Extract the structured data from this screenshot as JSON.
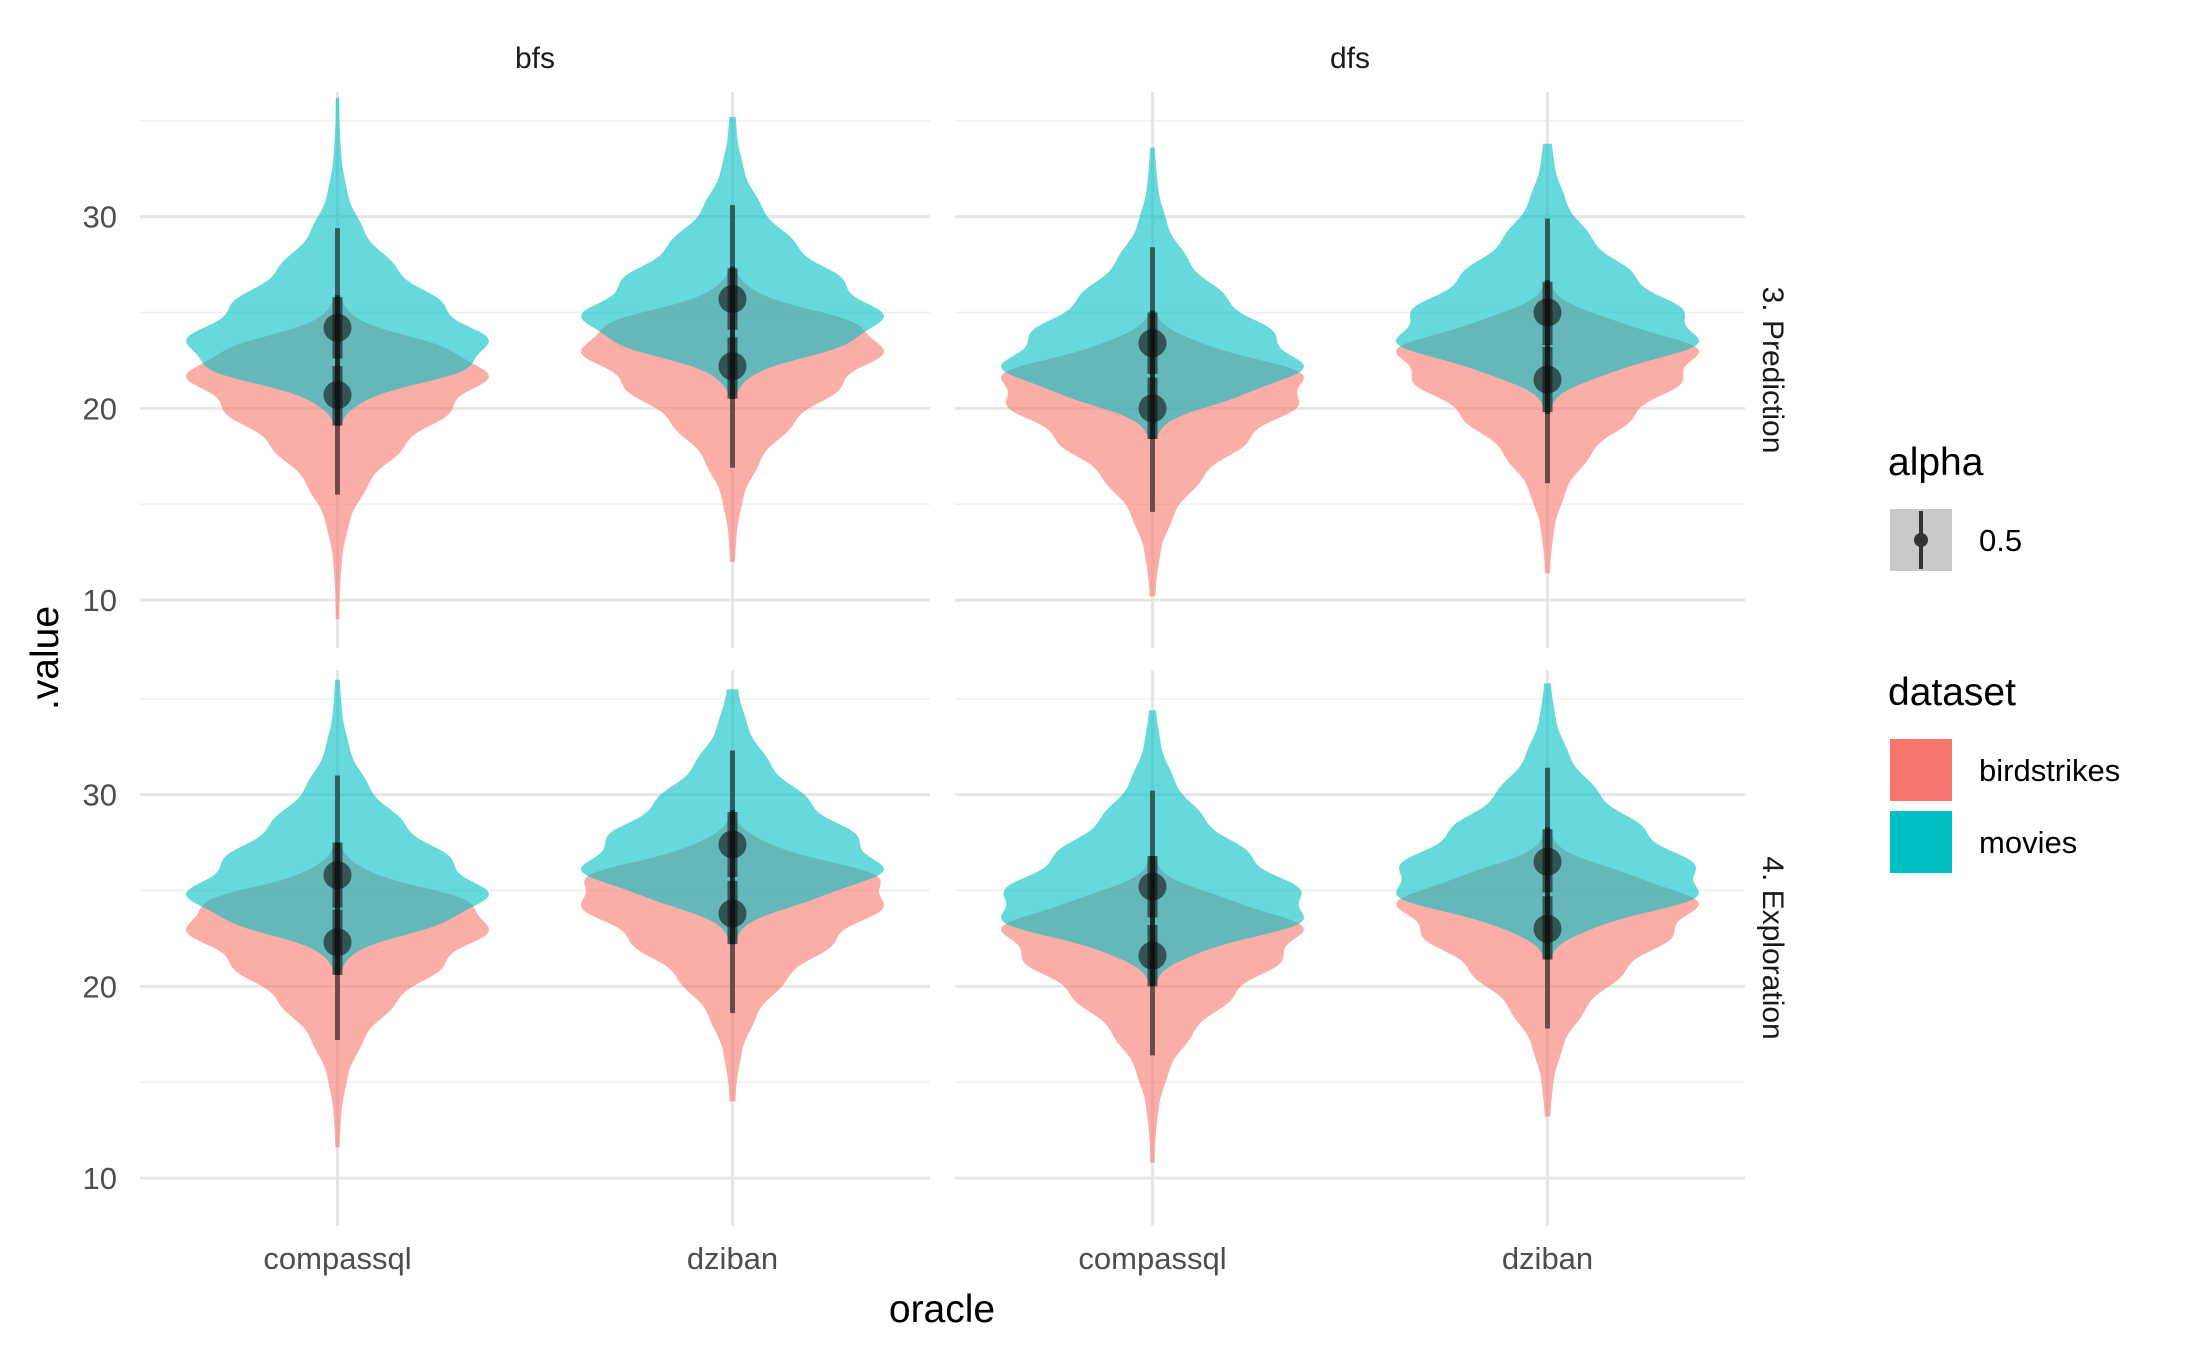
{
  "chart_data": {
    "type": "violin",
    "xlabel": "oracle",
    "ylabel": ".value",
    "ylim": [
      7.5,
      36.5
    ],
    "yticks": [
      10,
      20,
      30
    ],
    "categories": [
      "compassql",
      "dziban"
    ],
    "facet_cols": [
      "bfs",
      "dfs"
    ],
    "facet_rows": [
      "3. Prediction",
      "4. Exploration"
    ],
    "grid": true,
    "legend_position": "right",
    "legends": {
      "alpha": {
        "title": "alpha",
        "entries": [
          {
            "label": "0.5"
          }
        ]
      },
      "dataset": {
        "title": "dataset",
        "entries": [
          {
            "label": "birdstrikes",
            "color": "#F8766D"
          },
          {
            "label": "movies",
            "color": "#00BFC4"
          }
        ]
      }
    },
    "colors": {
      "birdstrikes": "#F8766D",
      "movies": "#00BFC4",
      "summary": "#111111"
    },
    "series": [
      {
        "name": "birdstrikes",
        "row": "3. Prediction",
        "col": "bfs",
        "oracle": "compassql",
        "median": 20.7,
        "q66": [
          19.1,
          22.2
        ],
        "q95": [
          15.5,
          25.9
        ],
        "range": [
          9.0,
          25.9
        ]
      },
      {
        "name": "movies",
        "row": "3. Prediction",
        "col": "bfs",
        "oracle": "compassql",
        "median": 24.2,
        "q66": [
          22.6,
          25.8
        ],
        "q95": [
          19.1,
          29.4
        ],
        "range": [
          19.1,
          36.2
        ]
      },
      {
        "name": "birdstrikes",
        "row": "3. Prediction",
        "col": "bfs",
        "oracle": "dziban",
        "median": 22.2,
        "q66": [
          20.5,
          23.7
        ],
        "q95": [
          16.9,
          27.4
        ],
        "range": [
          12.0,
          27.4
        ]
      },
      {
        "name": "movies",
        "row": "3. Prediction",
        "col": "bfs",
        "oracle": "dziban",
        "median": 25.7,
        "q66": [
          24.1,
          27.3
        ],
        "q95": [
          20.5,
          30.6
        ],
        "range": [
          20.5,
          35.2
        ]
      },
      {
        "name": "birdstrikes",
        "row": "3. Prediction",
        "col": "dfs",
        "oracle": "compassql",
        "median": 20.0,
        "q66": [
          18.4,
          21.6
        ],
        "q95": [
          14.6,
          25.1
        ],
        "range": [
          10.2,
          25.1
        ]
      },
      {
        "name": "movies",
        "row": "3. Prediction",
        "col": "dfs",
        "oracle": "compassql",
        "median": 23.4,
        "q66": [
          21.8,
          25.0
        ],
        "q95": [
          18.4,
          28.4
        ],
        "range": [
          18.4,
          33.6
        ]
      },
      {
        "name": "birdstrikes",
        "row": "3. Prediction",
        "col": "dfs",
        "oracle": "dziban",
        "median": 21.5,
        "q66": [
          19.8,
          23.2
        ],
        "q95": [
          16.1,
          26.7
        ],
        "range": [
          11.4,
          26.7
        ]
      },
      {
        "name": "movies",
        "row": "3. Prediction",
        "col": "dfs",
        "oracle": "dziban",
        "median": 25.0,
        "q66": [
          23.3,
          26.6
        ],
        "q95": [
          19.7,
          29.9
        ],
        "range": [
          19.7,
          33.8
        ]
      },
      {
        "name": "birdstrikes",
        "row": "4. Exploration",
        "col": "bfs",
        "oracle": "compassql",
        "median": 22.3,
        "q66": [
          20.6,
          24.0
        ],
        "q95": [
          17.2,
          27.5
        ],
        "range": [
          11.6,
          27.5
        ]
      },
      {
        "name": "movies",
        "row": "4. Exploration",
        "col": "bfs",
        "oracle": "compassql",
        "median": 25.8,
        "q66": [
          24.1,
          27.5
        ],
        "q95": [
          20.6,
          31.0
        ],
        "range": [
          20.6,
          36.0
        ]
      },
      {
        "name": "birdstrikes",
        "row": "4. Exploration",
        "col": "bfs",
        "oracle": "dziban",
        "median": 23.8,
        "q66": [
          22.2,
          25.5
        ],
        "q95": [
          18.6,
          29.2
        ],
        "range": [
          14.0,
          29.2
        ]
      },
      {
        "name": "movies",
        "row": "4. Exploration",
        "col": "bfs",
        "oracle": "dziban",
        "median": 27.4,
        "q66": [
          25.7,
          29.1
        ],
        "q95": [
          22.2,
          32.3
        ],
        "range": [
          22.2,
          35.5
        ]
      },
      {
        "name": "birdstrikes",
        "row": "4. Exploration",
        "col": "dfs",
        "oracle": "compassql",
        "median": 21.6,
        "q66": [
          20.0,
          23.2
        ],
        "q95": [
          16.4,
          26.8
        ],
        "range": [
          10.8,
          26.8
        ]
      },
      {
        "name": "movies",
        "row": "4. Exploration",
        "col": "dfs",
        "oracle": "compassql",
        "median": 25.2,
        "q66": [
          23.6,
          26.8
        ],
        "q95": [
          20.0,
          30.2
        ],
        "range": [
          20.0,
          34.4
        ]
      },
      {
        "name": "birdstrikes",
        "row": "4. Exploration",
        "col": "dfs",
        "oracle": "dziban",
        "median": 23.0,
        "q66": [
          21.4,
          24.7
        ],
        "q95": [
          17.8,
          28.3
        ],
        "range": [
          13.2,
          28.3
        ]
      },
      {
        "name": "movies",
        "row": "4. Exploration",
        "col": "dfs",
        "oracle": "dziban",
        "median": 26.5,
        "q66": [
          24.9,
          28.2
        ],
        "q95": [
          21.4,
          31.4
        ],
        "range": [
          21.4,
          35.8
        ]
      }
    ]
  }
}
